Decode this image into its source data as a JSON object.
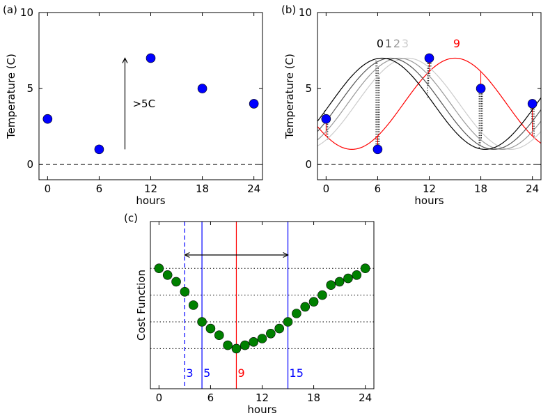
{
  "chart_data": [
    {
      "type": "scatter",
      "panel_label": "(a)",
      "xlabel": "hours",
      "ylabel": "Temperature (C)",
      "xlim": [
        -1,
        25
      ],
      "ylim": [
        -1,
        10
      ],
      "xticks": [
        0,
        6,
        12,
        18,
        24
      ],
      "xtick_labels": [
        "0",
        "6",
        "12",
        "18",
        "24"
      ],
      "yticks": [
        0,
        5,
        10
      ],
      "ytick_labels": [
        "0",
        "5",
        "10"
      ],
      "points": {
        "x": [
          0,
          6,
          12,
          18,
          24
        ],
        "y": [
          3,
          1,
          7,
          5,
          4
        ]
      },
      "zero_line": 0,
      "arrow": {
        "x": 9,
        "y_from": 1,
        "y_to": 7
      },
      "annotation": ">5C",
      "colors": {
        "point": "#0000ff",
        "axis": "#000000"
      }
    },
    {
      "type": "line",
      "panel_label": "(b)",
      "xlabel": "hours",
      "ylabel": "Temperature (C)",
      "xlim": [
        -1,
        25
      ],
      "ylim": [
        -1,
        10
      ],
      "xticks": [
        0,
        6,
        12,
        18,
        24
      ],
      "xtick_labels": [
        "0",
        "6",
        "12",
        "18",
        "24"
      ],
      "yticks": [
        0,
        5,
        10
      ],
      "ytick_labels": [
        "0",
        "5",
        "10"
      ],
      "points": {
        "x": [
          0,
          6,
          12,
          18,
          24
        ],
        "y": [
          3,
          1,
          7,
          5,
          4
        ]
      },
      "zero_line": 0,
      "sinusoid": {
        "mean": 4,
        "amplitude": 3,
        "period": 24
      },
      "series": [
        {
          "name": "0",
          "peak_hour": 6.5,
          "color": "#000000"
        },
        {
          "name": "1",
          "peak_hour": 7.5,
          "color": "#555555"
        },
        {
          "name": "2",
          "peak_hour": 8.5,
          "color": "#999999"
        },
        {
          "name": "3",
          "peak_hour": 9.5,
          "color": "#cccccc"
        },
        {
          "name": "9",
          "peak_hour": 15,
          "color": "#ff0000"
        }
      ],
      "series_labels": [
        "0",
        "1",
        "2",
        "3",
        "9"
      ]
    },
    {
      "type": "scatter",
      "panel_label": "(c)",
      "xlabel": "hours",
      "ylabel": "Cost Function",
      "xlim": [
        -1,
        25
      ],
      "ylim": [
        0,
        1
      ],
      "xticks": [
        0,
        6,
        12,
        18,
        24
      ],
      "xtick_labels": [
        "0",
        "6",
        "12",
        "18",
        "24"
      ],
      "points": {
        "x": [
          0,
          1,
          2,
          3,
          4,
          5,
          6,
          7,
          8,
          9,
          10,
          11,
          12,
          13,
          14,
          15,
          16,
          17,
          18,
          19,
          20,
          21,
          22,
          23,
          24
        ],
        "y": [
          0.72,
          0.68,
          0.64,
          0.58,
          0.5,
          0.4,
          0.36,
          0.32,
          0.26,
          0.24,
          0.26,
          0.28,
          0.3,
          0.33,
          0.36,
          0.4,
          0.45,
          0.49,
          0.52,
          0.56,
          0.62,
          0.64,
          0.66,
          0.68,
          0.72
        ]
      },
      "hlines": [
        0.72,
        0.56,
        0.4,
        0.24
      ],
      "vlines": [
        {
          "x": 3,
          "color": "#0000ff",
          "style": "dashed",
          "label": "3"
        },
        {
          "x": 5,
          "color": "#0000ff",
          "style": "solid",
          "label": "5"
        },
        {
          "x": 9,
          "color": "#ff0000",
          "style": "solid",
          "label": "9"
        },
        {
          "x": 15,
          "color": "#0000ff",
          "style": "solid",
          "label": "15"
        }
      ],
      "arrow": {
        "y": 0.8,
        "from": 9,
        "to_left": 3,
        "to_right": 15
      },
      "colors": {
        "point": "#008000"
      }
    }
  ]
}
